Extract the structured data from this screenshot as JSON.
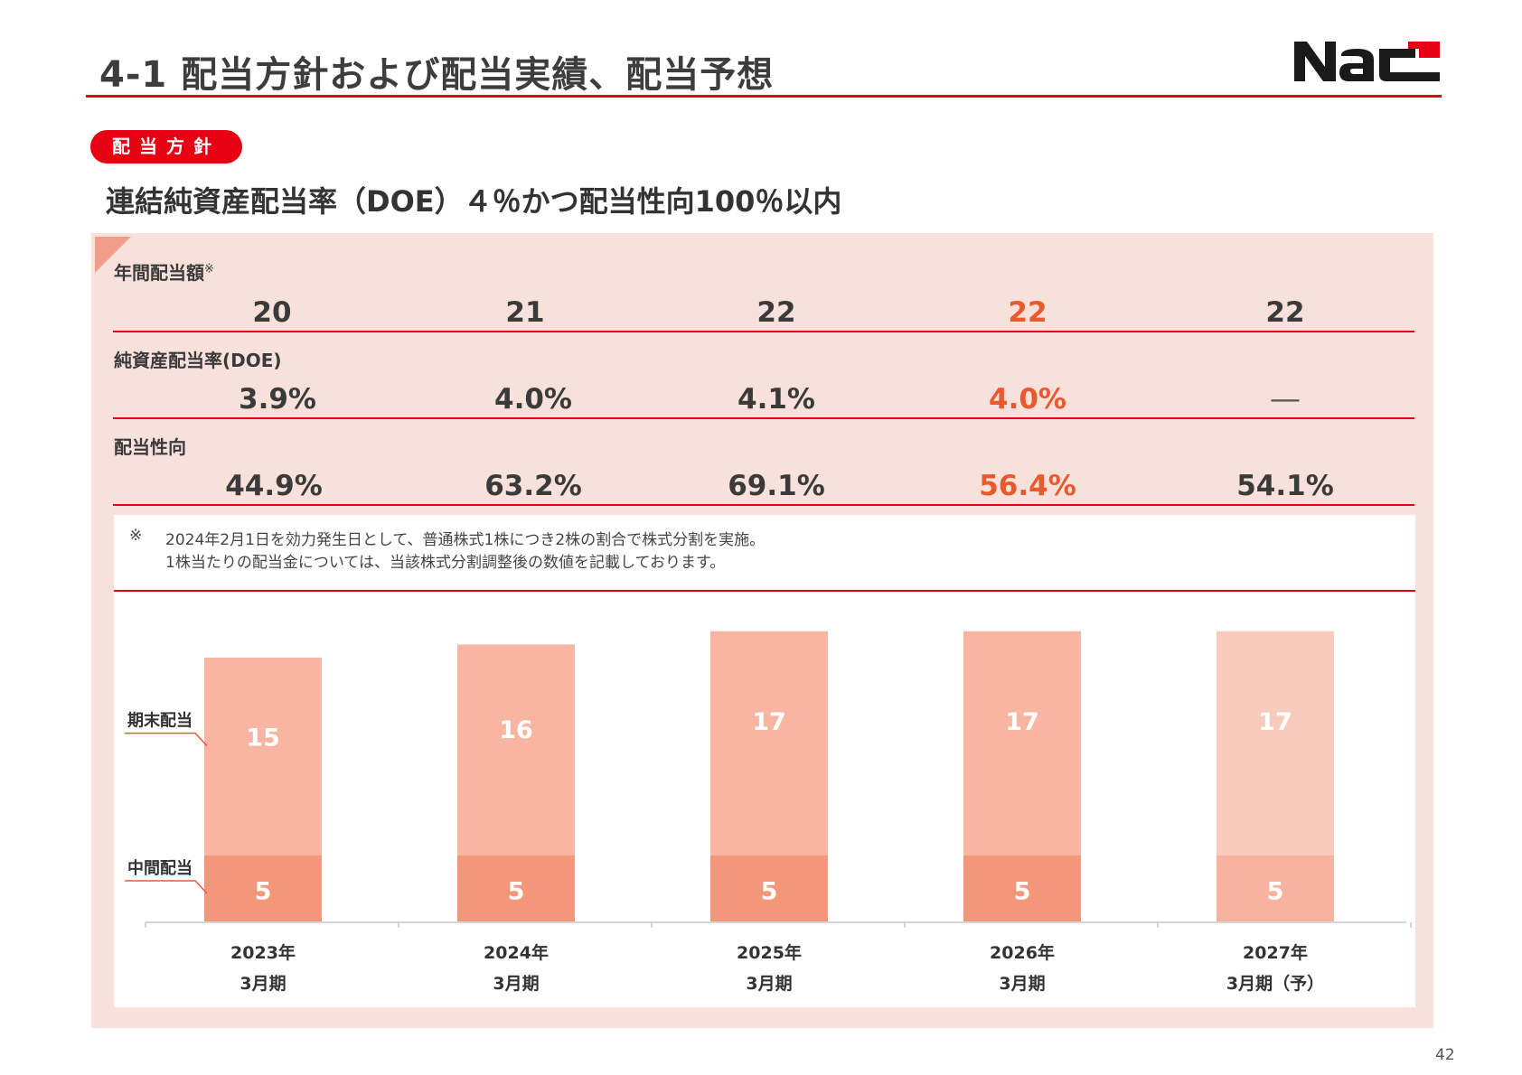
{
  "header": {
    "title": "4-1 配当方針および配当実績、配当予想",
    "logo_text": "Nac",
    "page_number": "42"
  },
  "policy": {
    "pill_label": "配当方針",
    "statement": "連結純資産配当率（DOE）４％かつ配当性向100％以内"
  },
  "table": {
    "annual_dividend": {
      "label": "年間配当額",
      "mark": "※",
      "values": [
        "20",
        "21",
        "22",
        "22",
        "22"
      ]
    },
    "doe": {
      "label": "純資産配当率(DOE)",
      "values": [
        "3.9%",
        "4.0%",
        "4.1%",
        "4.0%",
        "―"
      ]
    },
    "payout": {
      "label": "配当性向",
      "values": [
        "44.9%",
        "63.2%",
        "69.1%",
        "56.4%",
        "54.1%"
      ]
    },
    "highlight_color": "#e85a2e"
  },
  "note": {
    "mark": "※",
    "line1": "2024年2月1日を効力発生日として、普通株式1株につき2株の割合で株式分割を実施。",
    "line2": "1株当たりの配当金については、当該株式分割調整後の数値を記載しております。"
  },
  "chart_data": {
    "type": "bar",
    "stacked": true,
    "categories": [
      "2023年\n3月期",
      "2024年\n3月期",
      "2025年\n3月期",
      "2026年\n3月期",
      "2027年\n3月期（予）"
    ],
    "category_line1": [
      "2023年",
      "2024年",
      "2025年",
      "2026年",
      "2027年"
    ],
    "category_line2": [
      "3月期",
      "3月期",
      "3月期",
      "3月期",
      "3月期（予）"
    ],
    "series": [
      {
        "name": "中間配当",
        "values": [
          5,
          5,
          5,
          5,
          5
        ],
        "color": "#f4967a",
        "forecast_color": "#f8b3a0"
      },
      {
        "name": "期末配当",
        "values": [
          15,
          16,
          17,
          17,
          17
        ],
        "color": "#f8b6a2",
        "forecast_color": "#f9cbbd"
      }
    ],
    "forecast_index": 4,
    "label_color": "#ffffff",
    "xlabel": "",
    "ylabel": ""
  }
}
